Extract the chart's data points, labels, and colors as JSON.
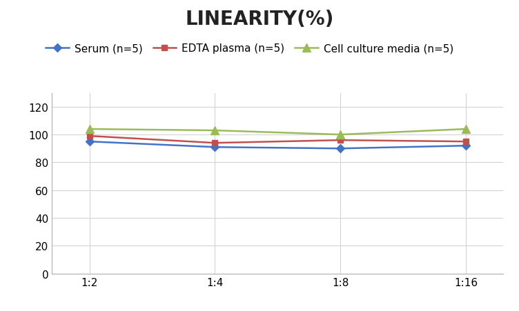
{
  "title": "LINEARITY(%)",
  "x_labels": [
    "1:2",
    "1:4",
    "1:8",
    "1:16"
  ],
  "x_positions": [
    0,
    1,
    2,
    3
  ],
  "series": [
    {
      "label": "Serum (n=5)",
      "values": [
        95,
        91,
        90,
        92
      ],
      "color": "#4472C4",
      "marker": "D",
      "markersize": 6,
      "linewidth": 1.8
    },
    {
      "label": "EDTA plasma (n=5)",
      "values": [
        99,
        94,
        96,
        95
      ],
      "color": "#C0504D",
      "marker": "s",
      "markersize": 6,
      "linewidth": 1.8
    },
    {
      "label": "Cell culture media (n=5)",
      "values": [
        104,
        103,
        100,
        104
      ],
      "color": "#9BBB59",
      "marker": "^",
      "markersize": 8,
      "linewidth": 1.8
    }
  ],
  "ylim": [
    0,
    130
  ],
  "yticks": [
    0,
    20,
    40,
    60,
    80,
    100,
    120
  ],
  "background_color": "#ffffff",
  "grid_color": "#d3d3d3",
  "title_fontsize": 20,
  "legend_fontsize": 11,
  "tick_fontsize": 11
}
